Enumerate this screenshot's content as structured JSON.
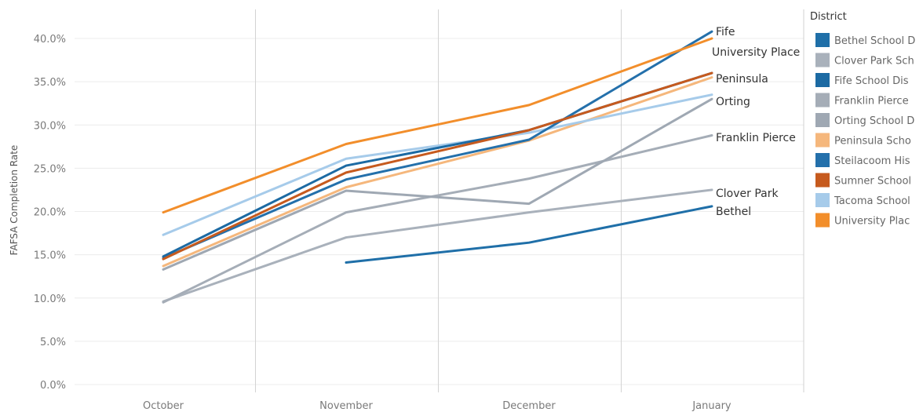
{
  "chart_data": {
    "type": "line",
    "categories": [
      "October",
      "November",
      "December",
      "January"
    ],
    "ylabel": "FAFSA Completion Rate",
    "ylim": [
      0,
      0.42
    ],
    "yticks": [
      0,
      0.05,
      0.1,
      0.15,
      0.2,
      0.25,
      0.3,
      0.35,
      0.4
    ],
    "ytick_labels": [
      "0.0%",
      "5.0%",
      "10.0%",
      "15.0%",
      "20.0%",
      "25.0%",
      "30.0%",
      "35.0%",
      "40.0%"
    ],
    "grid": true,
    "legend": {
      "title": "District",
      "position": "right",
      "entries": [
        {
          "label": "Bethel School D",
          "color": "#1f6fa8"
        },
        {
          "label": "Clover Park Sch",
          "color": "#a9b1bb"
        },
        {
          "label": "Fife School Dis",
          "color": "#1c6aa3"
        },
        {
          "label": "Franklin Pierce",
          "color": "#a5adb7"
        },
        {
          "label": "Orting School D",
          "color": "#9fa8b3"
        },
        {
          "label": "Peninsula Scho",
          "color": "#f5b77c"
        },
        {
          "label": "Steilacoom His",
          "color": "#2470ab"
        },
        {
          "label": "Sumner School",
          "color": "#c65a1e"
        },
        {
          "label": "Tacoma School",
          "color": "#a6cbea"
        },
        {
          "label": "University Plac",
          "color": "#f28e2b"
        }
      ]
    },
    "series": [
      {
        "color": "#1f6fa8",
        "values": [
          null,
          0.141,
          0.164,
          0.206
        ]
      },
      {
        "color": "#a9b1bb",
        "values": [
          0.096,
          0.17,
          0.199,
          0.225
        ]
      },
      {
        "color": "#a5adb7",
        "values": [
          0.095,
          0.199,
          0.238,
          0.288
        ]
      },
      {
        "color": "#9fa8b3",
        "values": [
          0.133,
          0.224,
          0.209,
          0.33
        ]
      },
      {
        "color": "#f5b77c",
        "values": [
          0.137,
          0.228,
          0.282,
          0.355
        ]
      },
      {
        "color": "#a6cbea",
        "values": [
          0.173,
          0.261,
          0.291,
          0.335
        ]
      },
      {
        "color": "#2470ab",
        "values": [
          0.146,
          0.237,
          0.283,
          0.408
        ]
      },
      {
        "color": "#1c6aa3",
        "values": [
          0.148,
          0.253,
          0.294,
          0.36
        ]
      },
      {
        "color": "#c65a1e",
        "values": [
          0.145,
          0.245,
          0.294,
          0.36
        ]
      },
      {
        "color": "#f28e2b",
        "values": [
          0.199,
          0.278,
          0.323,
          0.4
        ]
      }
    ],
    "end_labels": [
      "Fife",
      "University Place",
      "Peninsula",
      "Orting",
      "Franklin Pierce",
      "Clover Park",
      "Bethel"
    ]
  }
}
